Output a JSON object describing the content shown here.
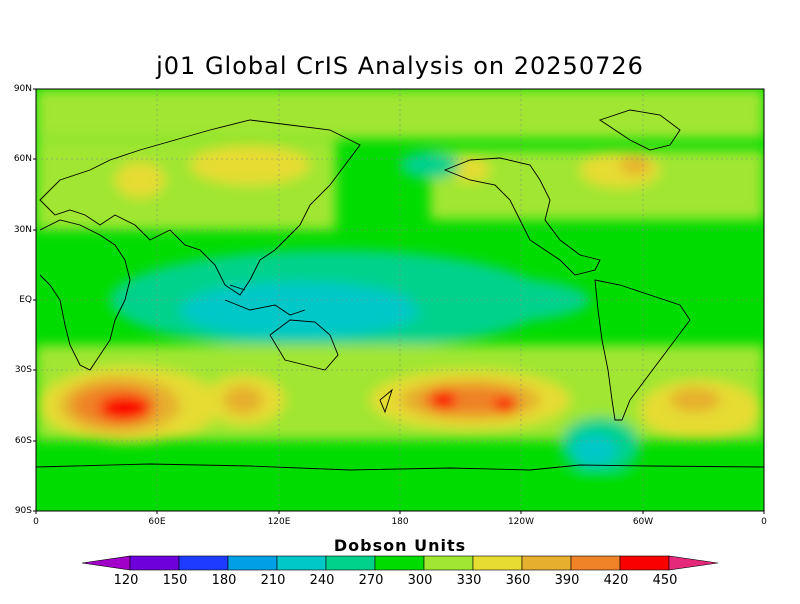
{
  "title": "j01 Global CrIS Analysis on 20250726",
  "lat_ticks": [
    "90N",
    "60N",
    "30N",
    "EQ",
    "30S",
    "60S",
    "90S"
  ],
  "lon_ticks": [
    "0",
    "60E",
    "120E",
    "180",
    "120W",
    "60W",
    "0"
  ],
  "legend": {
    "title": "Dobson Units",
    "values": [
      "120",
      "150",
      "180",
      "210",
      "240",
      "270",
      "300",
      "330",
      "360",
      "390",
      "420",
      "450"
    ],
    "colors": [
      "#a000c8",
      "#6e00dc",
      "#1e3cff",
      "#00a0e6",
      "#00c8c8",
      "#00d28c",
      "#00dc00",
      "#a0e632",
      "#e6dc32",
      "#e6af2d",
      "#f08228",
      "#fa0000",
      "#e6287a"
    ]
  }
}
